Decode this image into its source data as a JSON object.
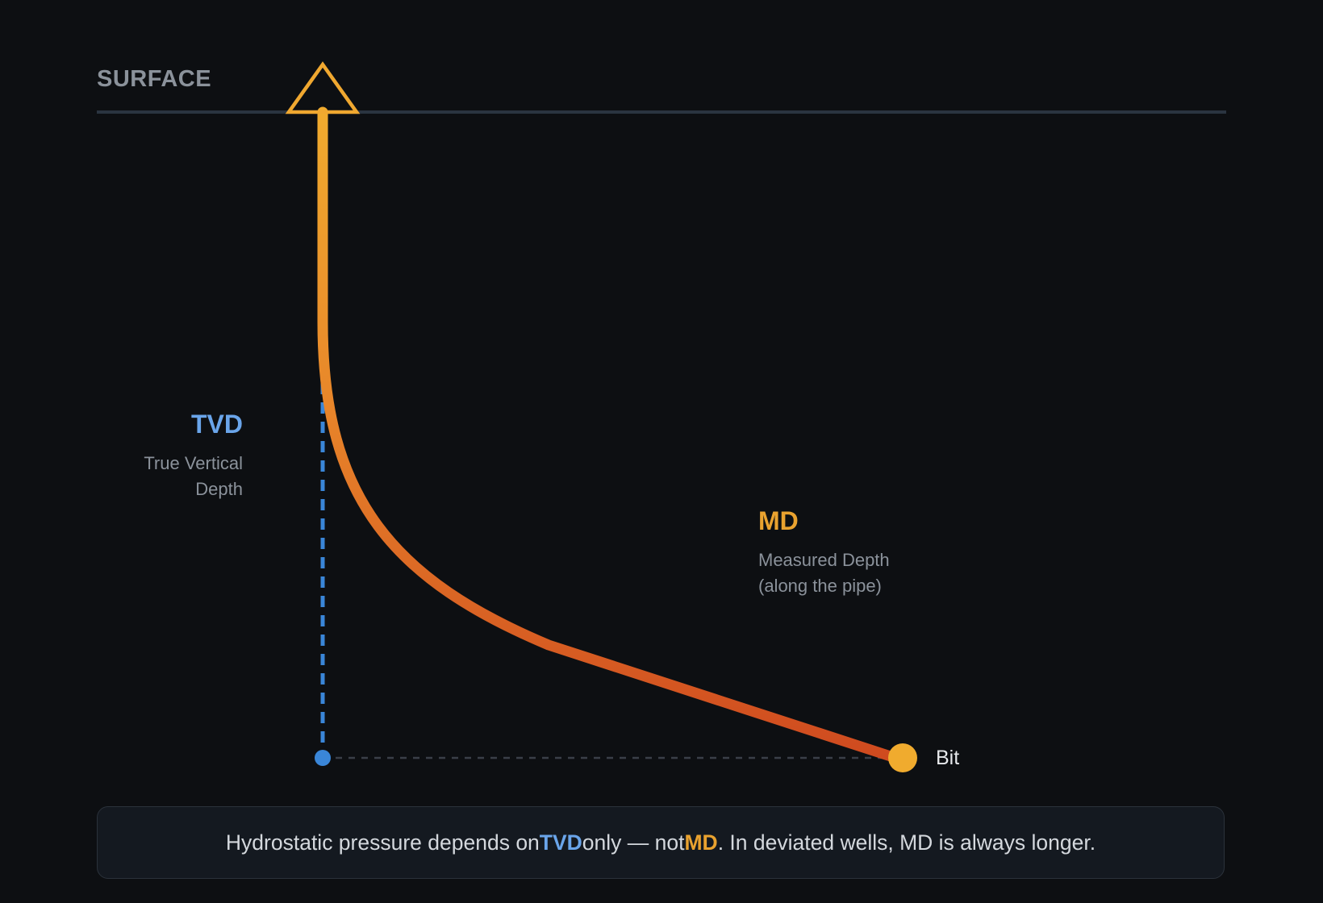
{
  "surface": {
    "label": "SURFACE"
  },
  "tvd": {
    "title": "TVD",
    "description": "True Vertical\nDepth"
  },
  "md": {
    "title": "MD",
    "description": "Measured Depth\n(along the pipe)"
  },
  "bit": {
    "label": "Bit"
  },
  "note": {
    "part1": "Hydrostatic pressure depends on ",
    "tvd": "TVD",
    "part2": " only — not ",
    "md": "MD",
    "part3": ". In deviated wells, MD is always longer."
  },
  "colors": {
    "background": "#0d0f12",
    "surface_line": "#2a3440",
    "well_top": "#f0a830",
    "well_bottom": "#d24a1e",
    "tvd_blue": "#3a86d8",
    "md_orange": "#e9a22f",
    "bit": "#f0a830"
  },
  "icons": {
    "wellhead": "triangle-outline-icon",
    "bit": "filled-circle-icon"
  }
}
